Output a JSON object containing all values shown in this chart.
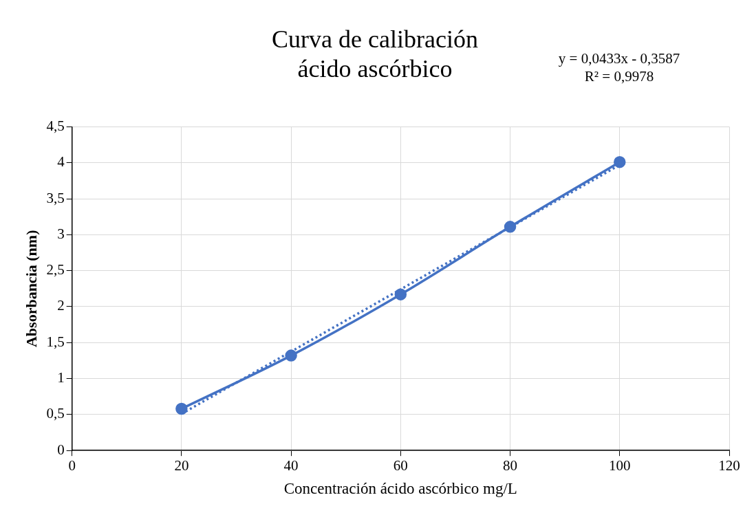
{
  "chart_data": {
    "type": "line",
    "title": "Curva de calibración\nácido ascórbico",
    "xlabel": "Concentración ácido ascórbico mg/L",
    "ylabel": "Absorbancia (nm)",
    "annotations": [
      "y = 0,0433x - 0,3587",
      "R² = 0,9978"
    ],
    "x": [
      20,
      40,
      60,
      80,
      100
    ],
    "series": [
      {
        "color": "#4472c4",
        "values": [
          0.58,
          1.32,
          2.17,
          3.11,
          4.01
        ],
        "marker": "circle",
        "line_style": "solid"
      },
      {
        "type": "line",
        "color": "#4472c4",
        "x": [
          20,
          100
        ],
        "values": [
          0.51,
          3.97
        ],
        "marker": "none",
        "line_style": "dotted"
      }
    ],
    "xlim": [
      0,
      120
    ],
    "xticks": [
      0,
      20,
      40,
      60,
      80,
      100,
      120
    ],
    "ylim": [
      0,
      4.5
    ],
    "yticks": [
      0,
      {
        "value": 0.5,
        "label": "0,5"
      },
      1,
      {
        "value": 1.5,
        "label": "1,5"
      },
      2,
      {
        "value": 2.5,
        "label": "2,5"
      },
      3,
      {
        "value": 3.5,
        "label": "3,5"
      },
      4,
      {
        "value": 4.5,
        "label": "4,5"
      }
    ],
    "grid": true,
    "legend": false
  }
}
